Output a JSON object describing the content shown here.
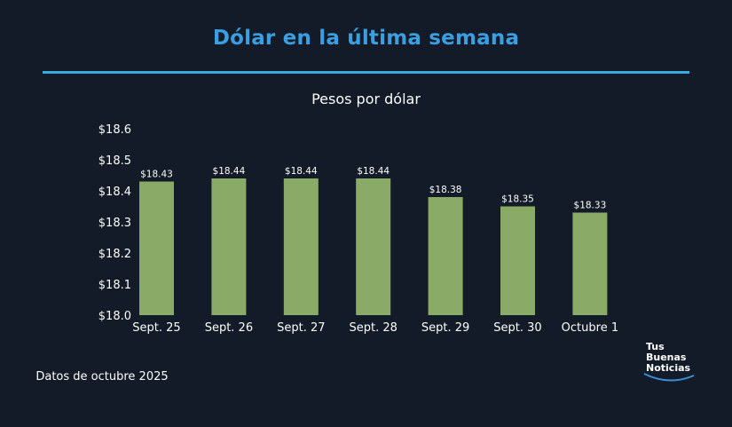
{
  "title": "Dólar en la última semana",
  "subtitle": "Pesos por dólar",
  "footnote": "Datos de octubre 2025",
  "logo": {
    "line1": "Tus",
    "line2": "Buenas",
    "line3": "Noticias"
  },
  "colors": {
    "background": "#121b27",
    "title": "#3a9ee0",
    "rule": "#3aa9e0",
    "bar": "#8aab68",
    "logo_arc": "#3a8fd6"
  },
  "chart_data": {
    "type": "bar",
    "categories": [
      "Sept. 25",
      "Sept. 26",
      "Sept. 27",
      "Sept. 28",
      "Sept. 29",
      "Sept. 30",
      "Octubre 1"
    ],
    "values": [
      18.43,
      18.44,
      18.44,
      18.44,
      18.38,
      18.35,
      18.33
    ],
    "value_labels": [
      "$18.43",
      "$18.44",
      "$18.44",
      "$18.44",
      "$18.38",
      "$18.35",
      "$18.33"
    ],
    "yticks": [
      18.0,
      18.1,
      18.2,
      18.3,
      18.4,
      18.5,
      18.6
    ],
    "ytick_labels": [
      "$18.0",
      "$18.1",
      "$18.2",
      "$18.3",
      "$18.4",
      "$18.5",
      "$18.6"
    ],
    "ylim": [
      18.0,
      18.6
    ],
    "title": "Pesos por dólar",
    "grid": false,
    "legend": false
  }
}
